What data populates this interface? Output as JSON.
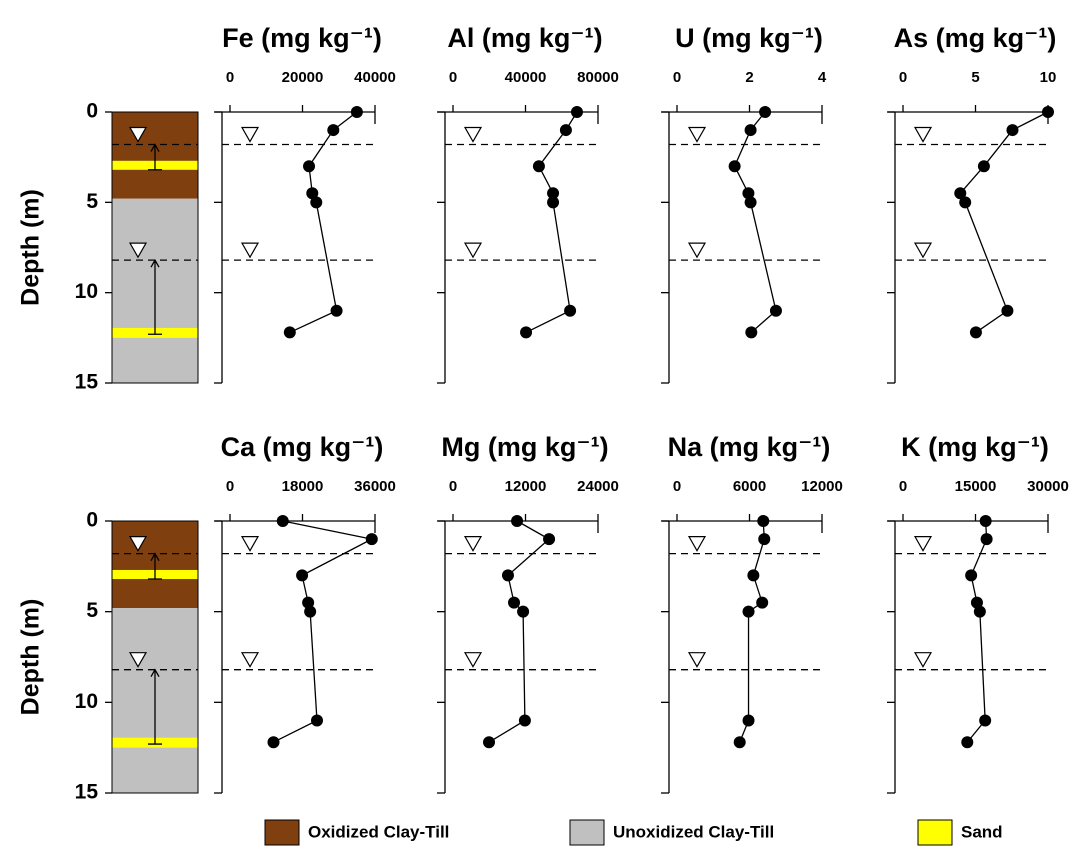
{
  "depth_label": "Depth (m)",
  "depth_lim": [
    0,
    15
  ],
  "depth_ticks": [
    0,
    5,
    10,
    15
  ],
  "strata": [
    {
      "name": "Oxidized Clay-Till",
      "color": "#7f3f0f",
      "intervals": [
        [
          0,
          4.8
        ]
      ]
    },
    {
      "name": "Unoxidized Clay-Till",
      "color": "#c0c0c0",
      "intervals": [
        [
          4.8,
          15
        ]
      ]
    },
    {
      "name": "Sand",
      "color": "#ffff00",
      "intervals": [
        [
          2.7,
          3.2
        ],
        [
          11.95,
          12.5
        ]
      ]
    }
  ],
  "water_table_ranges": [
    [
      1.8,
      3.2
    ],
    [
      8.2,
      12.3
    ]
  ],
  "chart_data": [
    {
      "type": "line",
      "title": "Fe (mg kg⁻¹)",
      "xlim": [
        0,
        40000
      ],
      "xticks": [
        0,
        20000,
        40000
      ],
      "depths": [
        0,
        1,
        3,
        4.5,
        5,
        11,
        12.2
      ],
      "values": [
        35000,
        28500,
        21800,
        22700,
        23800,
        29400,
        16500
      ]
    },
    {
      "type": "line",
      "title": "Al (mg kg⁻¹)",
      "xlim": [
        0,
        80000
      ],
      "xticks": [
        0,
        40000,
        80000
      ],
      "depths": [
        0,
        1,
        3,
        4.5,
        5,
        11,
        12.2
      ],
      "values": [
        68400,
        62300,
        47400,
        55200,
        55200,
        64600,
        40300
      ]
    },
    {
      "type": "line",
      "title": "U (mg kg⁻¹)",
      "xlim": [
        0,
        4
      ],
      "xticks": [
        0,
        2,
        4
      ],
      "depths": [
        0,
        1,
        3,
        4.5,
        5,
        11,
        12.2
      ],
      "values": [
        2.43,
        2.03,
        1.59,
        1.97,
        2.03,
        2.73,
        2.05
      ]
    },
    {
      "type": "line",
      "title": "As (mg kg⁻¹)",
      "xlim": [
        0,
        10
      ],
      "xticks": [
        0,
        5,
        10
      ],
      "depths": [
        0,
        1,
        3,
        4.5,
        5,
        11,
        12.2
      ],
      "values": [
        10,
        7.55,
        5.58,
        3.95,
        4.29,
        7.2,
        5.03
      ]
    },
    {
      "type": "line",
      "title": "Ca (mg kg⁻¹)",
      "xlim": [
        0,
        36000
      ],
      "xticks": [
        0,
        18000,
        36000
      ],
      "depths": [
        0,
        1,
        3,
        4.5,
        5,
        11,
        12.2
      ],
      "values": [
        13100,
        35200,
        17900,
        19400,
        19900,
        21600,
        10800
      ]
    },
    {
      "type": "line",
      "title": "Mg (mg kg⁻¹)",
      "xlim": [
        0,
        24000
      ],
      "xticks": [
        0,
        12000,
        24000
      ],
      "depths": [
        0,
        1,
        3,
        4.5,
        5,
        11,
        12.2
      ],
      "values": [
        10600,
        15900,
        9100,
        10100,
        11600,
        11900,
        5960
      ]
    },
    {
      "type": "line",
      "title": "Na (mg kg⁻¹)",
      "xlim": [
        0,
        12000
      ],
      "xticks": [
        0,
        6000,
        12000
      ],
      "depths": [
        0,
        1,
        3,
        4.5,
        5,
        11,
        12.2
      ],
      "values": [
        7140,
        7220,
        6320,
        7050,
        5920,
        5920,
        5190
      ]
    },
    {
      "type": "line",
      "title": "K (mg kg⁻¹)",
      "xlim": [
        0,
        30000
      ],
      "xticks": [
        0,
        15000,
        30000
      ],
      "depths": [
        0,
        1,
        3,
        4.5,
        5,
        11,
        12.2
      ],
      "values": [
        17100,
        17300,
        14100,
        15300,
        15900,
        17000,
        13300
      ]
    }
  ]
}
